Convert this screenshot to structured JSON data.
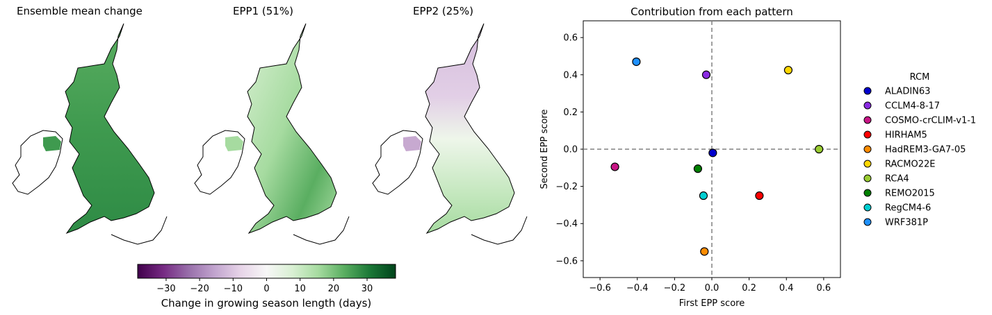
{
  "map_panels": [
    {
      "title": "Ensemble mean change"
    },
    {
      "title": "EPP1 (51%)"
    },
    {
      "title": "EPP2 (25%)"
    }
  ],
  "colorbar": {
    "label": "Change in growing season length (days)",
    "ticks": [
      -30,
      -20,
      -10,
      0,
      10,
      20,
      30
    ],
    "tick_labels": [
      "−30",
      "−20",
      "−10",
      "0",
      "10",
      "20",
      "30"
    ],
    "vmin": -38.5,
    "vmax": 38.5,
    "colormap": "PRGn",
    "colors": [
      "#40004b",
      "#762a83",
      "#9970ab",
      "#c2a5cf",
      "#e7d4e8",
      "#f7f7f7",
      "#d9f0d3",
      "#a6dba0",
      "#5aae61",
      "#1b7837",
      "#00441b"
    ]
  },
  "chart_data": {
    "type": "scatter",
    "title": "Contribution from each pattern",
    "xlabel": "First EPP score",
    "ylabel": "Second EPP score",
    "xlim": [
      -0.69,
      0.69
    ],
    "ylim": [
      -0.69,
      0.69
    ],
    "xticks": [
      -0.6,
      -0.4,
      -0.2,
      0.0,
      0.2,
      0.4,
      0.6
    ],
    "yticks": [
      -0.6,
      -0.4,
      -0.2,
      0.0,
      0.2,
      0.4,
      0.6
    ],
    "xtick_labels": [
      "−0.6",
      "−0.4",
      "−0.2",
      "0.0",
      "0.2",
      "0.4",
      "0.6"
    ],
    "ytick_labels": [
      "−0.6",
      "−0.4",
      "−0.2",
      "0.0",
      "0.2",
      "0.4",
      "0.6"
    ],
    "reference_lines": {
      "x": 0,
      "y": 0,
      "style": "dashed",
      "color": "#808080"
    },
    "legend": {
      "title": "RCM",
      "placement": "outside-right"
    },
    "series": [
      {
        "name": "ALADIN63",
        "color": "#0000cd",
        "x": 0.005,
        "y": -0.02
      },
      {
        "name": "CCLM4-8-17",
        "color": "#8a2be2",
        "x": -0.03,
        "y": 0.4
      },
      {
        "name": "COSMO-crCLIM-v1-1",
        "color": "#c71585",
        "x": -0.52,
        "y": -0.095
      },
      {
        "name": "HIRHAM5",
        "color": "#ff0000",
        "x": 0.255,
        "y": -0.25
      },
      {
        "name": "HadREM3-GA7-05",
        "color": "#ff8c00",
        "x": -0.04,
        "y": -0.55
      },
      {
        "name": "RACMO22E",
        "color": "#ffd700",
        "x": 0.41,
        "y": 0.425
      },
      {
        "name": "RCA4",
        "color": "#9acd32",
        "x": 0.575,
        "y": 0.0
      },
      {
        "name": "REMO2015",
        "color": "#008000",
        "x": -0.075,
        "y": -0.105
      },
      {
        "name": "RegCM4-6",
        "color": "#00ced1",
        "x": -0.045,
        "y": -0.25
      },
      {
        "name": "WRF381P",
        "color": "#1e90ff",
        "x": -0.405,
        "y": 0.47
      }
    ]
  }
}
